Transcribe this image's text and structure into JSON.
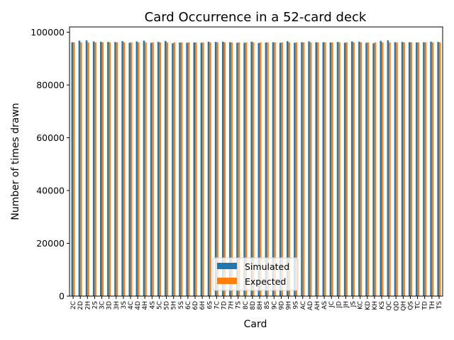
{
  "chart_data": {
    "type": "bar",
    "title": "Card Occurrence in a 52-card deck",
    "xlabel": "Card",
    "ylabel": "Number of times drawn",
    "ylim": [
      0,
      102000
    ],
    "yticks": [
      0,
      20000,
      40000,
      60000,
      80000,
      100000
    ],
    "grid": false,
    "legend_position": "lower center",
    "categories": [
      "2C",
      "2D",
      "2H",
      "2S",
      "3C",
      "3D",
      "3H",
      "3S",
      "4C",
      "4D",
      "4H",
      "4S",
      "5C",
      "5D",
      "5H",
      "5S",
      "6C",
      "6D",
      "6H",
      "6S",
      "7C",
      "7D",
      "7H",
      "7S",
      "8C",
      "8D",
      "8H",
      "8S",
      "9C",
      "9D",
      "9H",
      "9S",
      "AC",
      "AD",
      "AH",
      "AS",
      "JC",
      "JD",
      "JH",
      "JS",
      "KC",
      "KD",
      "KH",
      "KS",
      "QC",
      "QD",
      "QH",
      "QS",
      "TC",
      "TD",
      "TH",
      "TS"
    ],
    "series": [
      {
        "name": "Simulated",
        "color": "#1f77b4",
        "values": [
          96200,
          96800,
          96900,
          96500,
          96400,
          96300,
          96300,
          96600,
          96000,
          96500,
          96800,
          96000,
          96300,
          96700,
          95800,
          96100,
          96000,
          96100,
          96000,
          96400,
          96300,
          96400,
          96200,
          96000,
          96000,
          96400,
          95900,
          96100,
          96200,
          96000,
          96600,
          96000,
          96200,
          96500,
          96200,
          96200,
          96100,
          96300,
          96000,
          96500,
          96400,
          96000,
          95800,
          96700,
          96900,
          96200,
          96300,
          96200,
          96100,
          96200,
          96400,
          96300
        ]
      },
      {
        "name": "Expected",
        "color": "#ff7f0e",
        "values": [
          96154,
          96154,
          96154,
          96154,
          96154,
          96154,
          96154,
          96154,
          96154,
          96154,
          96154,
          96154,
          96154,
          96154,
          96154,
          96154,
          96154,
          96154,
          96154,
          96154,
          96154,
          96154,
          96154,
          96154,
          96154,
          96154,
          96154,
          96154,
          96154,
          96154,
          96154,
          96154,
          96154,
          96154,
          96154,
          96154,
          96154,
          96154,
          96154,
          96154,
          96154,
          96154,
          96154,
          96154,
          96154,
          96154,
          96154,
          96154,
          96154,
          96154,
          96154,
          96154
        ]
      }
    ]
  }
}
